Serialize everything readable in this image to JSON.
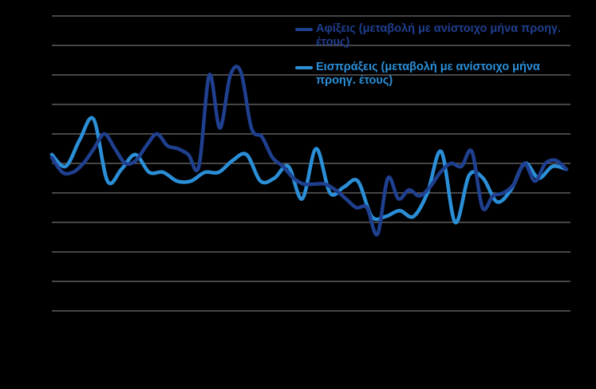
{
  "chart_data": {
    "type": "line",
    "title": "",
    "xlabel": "",
    "ylabel": "",
    "grid": true,
    "ylim": [
      -5,
      5
    ],
    "yticks": [
      -5,
      -4,
      -3,
      -2,
      -1,
      0,
      1,
      2,
      3,
      4,
      5
    ],
    "legend_position": "top-right",
    "series": [
      {
        "name": "Αφίξεις (μεταβολή με ανίστοιχο μήνα προηγ. έτους)",
        "color": "#1f3f8f",
        "values": [
          0.2,
          -0.3,
          -0.3,
          0.0,
          0.5,
          1.0,
          0.5,
          0.0,
          0.1,
          0.6,
          1.0,
          0.6,
          0.5,
          0.3,
          -0.1,
          3.0,
          1.2,
          3.0,
          3.1,
          1.2,
          0.9,
          0.2,
          -0.1,
          -0.5,
          -0.7,
          -0.7,
          -0.7,
          -0.9,
          -1.2,
          -1.5,
          -1.5,
          -2.4,
          -0.5,
          -1.2,
          -0.9,
          -1.1,
          -0.8,
          -0.3,
          0.0,
          -0.1,
          0.4,
          -1.5,
          -1.1,
          -1.0,
          -0.7,
          0.0,
          -0.6,
          0.0,
          0.1,
          -0.2
        ]
      },
      {
        "name": "Εισπράξεις (μεταβολή με ανίστοιχο μήνα προηγ. έτους)",
        "color": "#2b8fd8",
        "values": [
          0.3,
          -0.1,
          0.8,
          1.5,
          -0.6,
          -0.2,
          0.3,
          -0.3,
          -0.3,
          -0.6,
          -0.6,
          -0.3,
          -0.3,
          0.1,
          0.3,
          -0.6,
          -0.5,
          -0.1,
          -1.2,
          0.5,
          -1.0,
          -0.8,
          -0.6,
          -1.8,
          -1.8,
          -1.6,
          -1.8,
          -1.0,
          0.4,
          -2.0,
          -0.4,
          -0.5,
          -1.3,
          -0.9,
          0.0,
          -0.5,
          -0.1,
          -0.2
        ]
      }
    ]
  }
}
